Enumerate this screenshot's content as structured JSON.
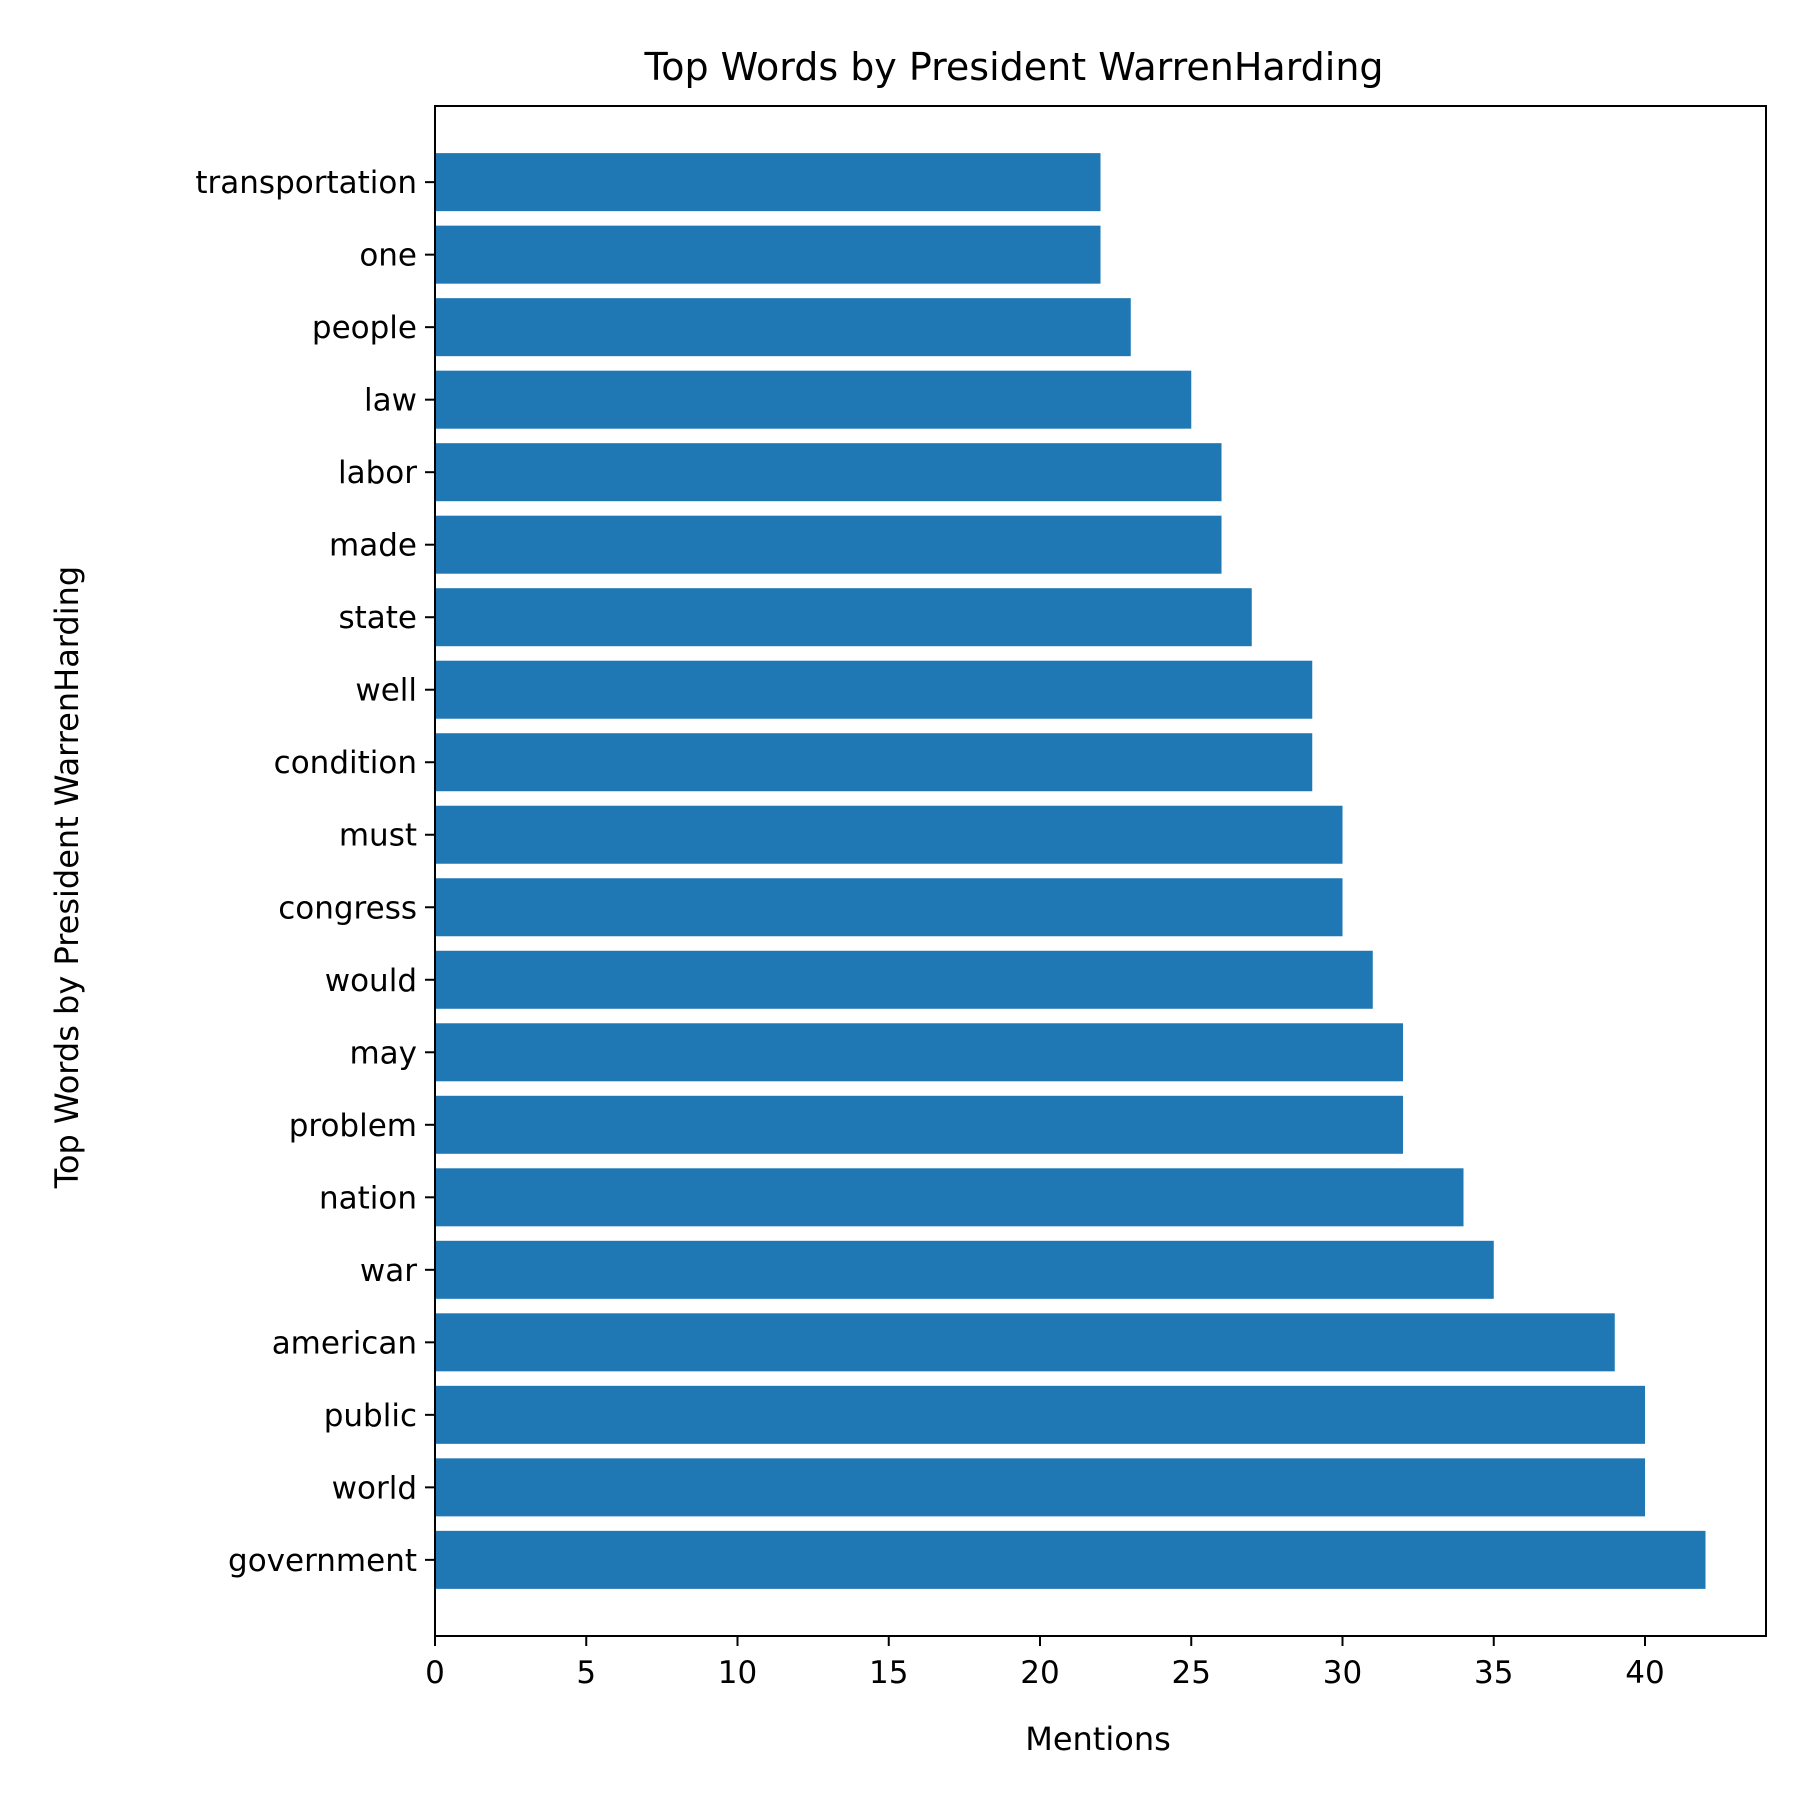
{
  "chart_data": {
    "type": "bar",
    "orientation": "horizontal",
    "title": "Top Words by President WarrenHarding",
    "xlabel": "Mentions",
    "ylabel": "Top Words by President WarrenHarding",
    "xlim": [
      0,
      44
    ],
    "xticks": [
      0,
      5,
      10,
      15,
      20,
      25,
      30,
      35,
      40
    ],
    "grid": false,
    "bar_color": "#1f77b4",
    "categories": [
      "government",
      "world",
      "public",
      "american",
      "war",
      "nation",
      "problem",
      "may",
      "would",
      "congress",
      "must",
      "condition",
      "well",
      "state",
      "made",
      "labor",
      "law",
      "people",
      "one",
      "transportation"
    ],
    "values": [
      42,
      40,
      40,
      39,
      35,
      34,
      32,
      32,
      31,
      30,
      30,
      29,
      29,
      27,
      26,
      26,
      25,
      23,
      22,
      22
    ]
  }
}
